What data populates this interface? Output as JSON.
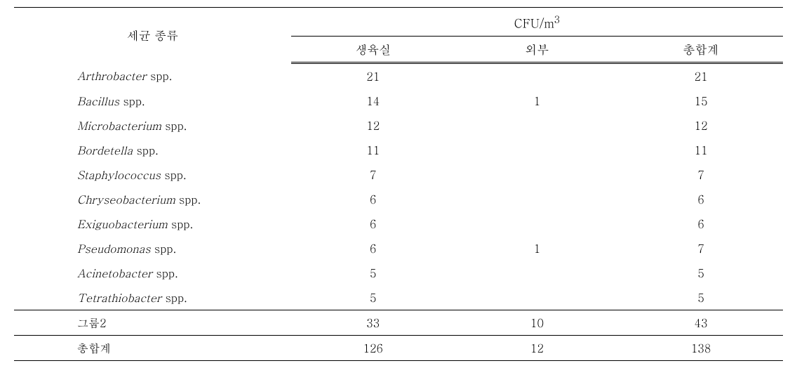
{
  "headers": {
    "species": "세균 종류",
    "cfu": "CFU/m",
    "cfu_sup": "3",
    "col1": "생육실",
    "col2": "외부",
    "col3": "총합계"
  },
  "rows": [
    {
      "genus": "Arthrobacter",
      "suffix": " spp.",
      "v1": "21",
      "v2": "",
      "v3": "21"
    },
    {
      "genus": "Bacillus",
      "suffix": " spp.",
      "v1": "14",
      "v2": "1",
      "v3": "15"
    },
    {
      "genus": "Microbacterium",
      "suffix": " spp.",
      "v1": "12",
      "v2": "",
      "v3": "12"
    },
    {
      "genus": "Bordetella",
      "suffix": " spp.",
      "v1": "11",
      "v2": "",
      "v3": "11"
    },
    {
      "genus": "Staphylococcus",
      "suffix": " spp.",
      "v1": "7",
      "v2": "",
      "v3": "7"
    },
    {
      "genus": "Chryseobacterium",
      "suffix": " spp.",
      "v1": "6",
      "v2": "",
      "v3": "6"
    },
    {
      "genus": "Exiguobacterium",
      "suffix": " spp.",
      "v1": "6",
      "v2": "",
      "v3": "6"
    },
    {
      "genus": "Pseudomonas",
      "suffix": " spp.",
      "v1": "6",
      "v2": "1",
      "v3": "7"
    },
    {
      "genus": "Acinetobacter",
      "suffix": " spp.",
      "v1": "5",
      "v2": "",
      "v3": "5"
    },
    {
      "genus": "Tetrathiobacter",
      "suffix": " spp.",
      "v1": "5",
      "v2": "",
      "v3": "5"
    }
  ],
  "group2": {
    "label": "그룹2",
    "v1": "33",
    "v2": "10",
    "v3": "43"
  },
  "total": {
    "label": "총합계",
    "v1": "126",
    "v2": "12",
    "v3": "138"
  }
}
